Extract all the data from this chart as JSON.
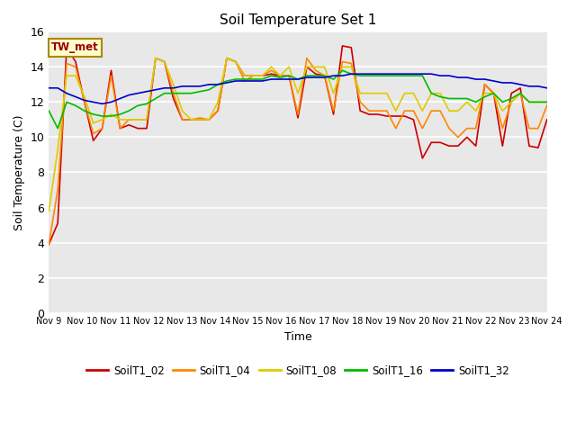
{
  "title": "Soil Temperature Set 1",
  "xlabel": "Time",
  "ylabel": "Soil Temperature (C)",
  "annotation": "TW_met",
  "ylim": [
    0,
    16
  ],
  "yticks": [
    0,
    2,
    4,
    6,
    8,
    10,
    12,
    14,
    16
  ],
  "xtick_labels": [
    "Nov 9",
    "Nov 10",
    "Nov 11",
    "Nov 12",
    "Nov 13",
    "Nov 14",
    "Nov 15",
    "Nov 16",
    "Nov 17",
    "Nov 18",
    "Nov 19",
    "Nov 20",
    "Nov 21",
    "Nov 22",
    "Nov 23",
    "Nov 24"
  ],
  "series_colors": [
    "#cc0000",
    "#ff8800",
    "#ddcc00",
    "#00bb00",
    "#0000cc"
  ],
  "series_names": [
    "SoilT1_02",
    "SoilT1_04",
    "SoilT1_08",
    "SoilT1_16",
    "SoilT1_32"
  ],
  "plot_bg": "#e8e8e8",
  "fig_bg": "#ffffff",
  "SoilT1_02": [
    3.9,
    5.1,
    15.1,
    14.3,
    12.0,
    9.8,
    10.5,
    13.8,
    10.5,
    10.7,
    10.5,
    10.5,
    14.5,
    14.3,
    12.2,
    11.0,
    11.0,
    11.0,
    11.0,
    11.5,
    14.5,
    14.3,
    13.5,
    13.5,
    13.5,
    13.6,
    13.5,
    13.5,
    11.1,
    14.0,
    13.6,
    13.5,
    11.3,
    15.2,
    15.1,
    11.5,
    11.3,
    11.3,
    11.2,
    11.2,
    11.2,
    11.0,
    8.8,
    9.7,
    9.7,
    9.5,
    9.5,
    10.0,
    9.5,
    13.0,
    12.5,
    9.5,
    12.5,
    12.8,
    9.5,
    9.4,
    11.0
  ],
  "SoilT1_04": [
    3.9,
    7.0,
    14.2,
    14.0,
    12.0,
    10.2,
    10.5,
    13.5,
    10.5,
    11.0,
    11.0,
    11.0,
    14.5,
    14.3,
    12.5,
    11.0,
    11.0,
    11.1,
    11.0,
    11.5,
    14.5,
    14.3,
    13.2,
    13.5,
    13.5,
    13.8,
    13.5,
    13.5,
    11.3,
    14.5,
    13.8,
    13.5,
    11.5,
    14.3,
    14.2,
    12.0,
    11.5,
    11.5,
    11.5,
    10.5,
    11.5,
    11.5,
    10.5,
    11.5,
    11.5,
    10.5,
    10.0,
    10.5,
    10.5,
    13.0,
    12.5,
    10.5,
    12.0,
    12.5,
    10.5,
    10.5,
    11.8
  ],
  "SoilT1_08": [
    5.8,
    9.3,
    13.5,
    13.5,
    12.3,
    10.8,
    11.0,
    11.3,
    11.0,
    11.0,
    11.0,
    11.0,
    14.5,
    14.3,
    13.0,
    11.5,
    11.0,
    11.0,
    11.0,
    12.0,
    14.5,
    14.3,
    13.5,
    13.5,
    13.5,
    14.0,
    13.5,
    14.0,
    12.5,
    14.0,
    14.0,
    14.0,
    12.5,
    14.0,
    14.0,
    12.5,
    12.5,
    12.5,
    12.5,
    11.5,
    12.5,
    12.5,
    11.5,
    12.5,
    12.5,
    11.5,
    11.5,
    12.0,
    11.5,
    12.5,
    12.5,
    11.5,
    12.0,
    12.5,
    12.0,
    12.0,
    12.0
  ],
  "SoilT1_16": [
    11.5,
    10.5,
    12.0,
    11.8,
    11.5,
    11.3,
    11.2,
    11.2,
    11.3,
    11.5,
    11.8,
    11.9,
    12.2,
    12.5,
    12.5,
    12.5,
    12.5,
    12.6,
    12.7,
    13.0,
    13.2,
    13.3,
    13.3,
    13.3,
    13.3,
    13.5,
    13.4,
    13.5,
    13.3,
    13.5,
    13.5,
    13.5,
    13.3,
    13.8,
    13.6,
    13.5,
    13.5,
    13.5,
    13.5,
    13.5,
    13.5,
    13.5,
    13.5,
    12.5,
    12.3,
    12.2,
    12.2,
    12.2,
    12.0,
    12.3,
    12.5,
    12.0,
    12.2,
    12.5,
    12.0,
    12.0,
    12.0
  ],
  "SoilT1_32": [
    12.8,
    12.8,
    12.5,
    12.3,
    12.1,
    12.0,
    11.9,
    12.0,
    12.2,
    12.4,
    12.5,
    12.6,
    12.7,
    12.8,
    12.8,
    12.9,
    12.9,
    12.9,
    13.0,
    13.0,
    13.1,
    13.2,
    13.2,
    13.2,
    13.2,
    13.3,
    13.3,
    13.3,
    13.3,
    13.4,
    13.4,
    13.4,
    13.5,
    13.5,
    13.6,
    13.6,
    13.6,
    13.6,
    13.6,
    13.6,
    13.6,
    13.6,
    13.6,
    13.6,
    13.5,
    13.5,
    13.4,
    13.4,
    13.3,
    13.3,
    13.2,
    13.1,
    13.1,
    13.0,
    12.9,
    12.9,
    12.8
  ]
}
